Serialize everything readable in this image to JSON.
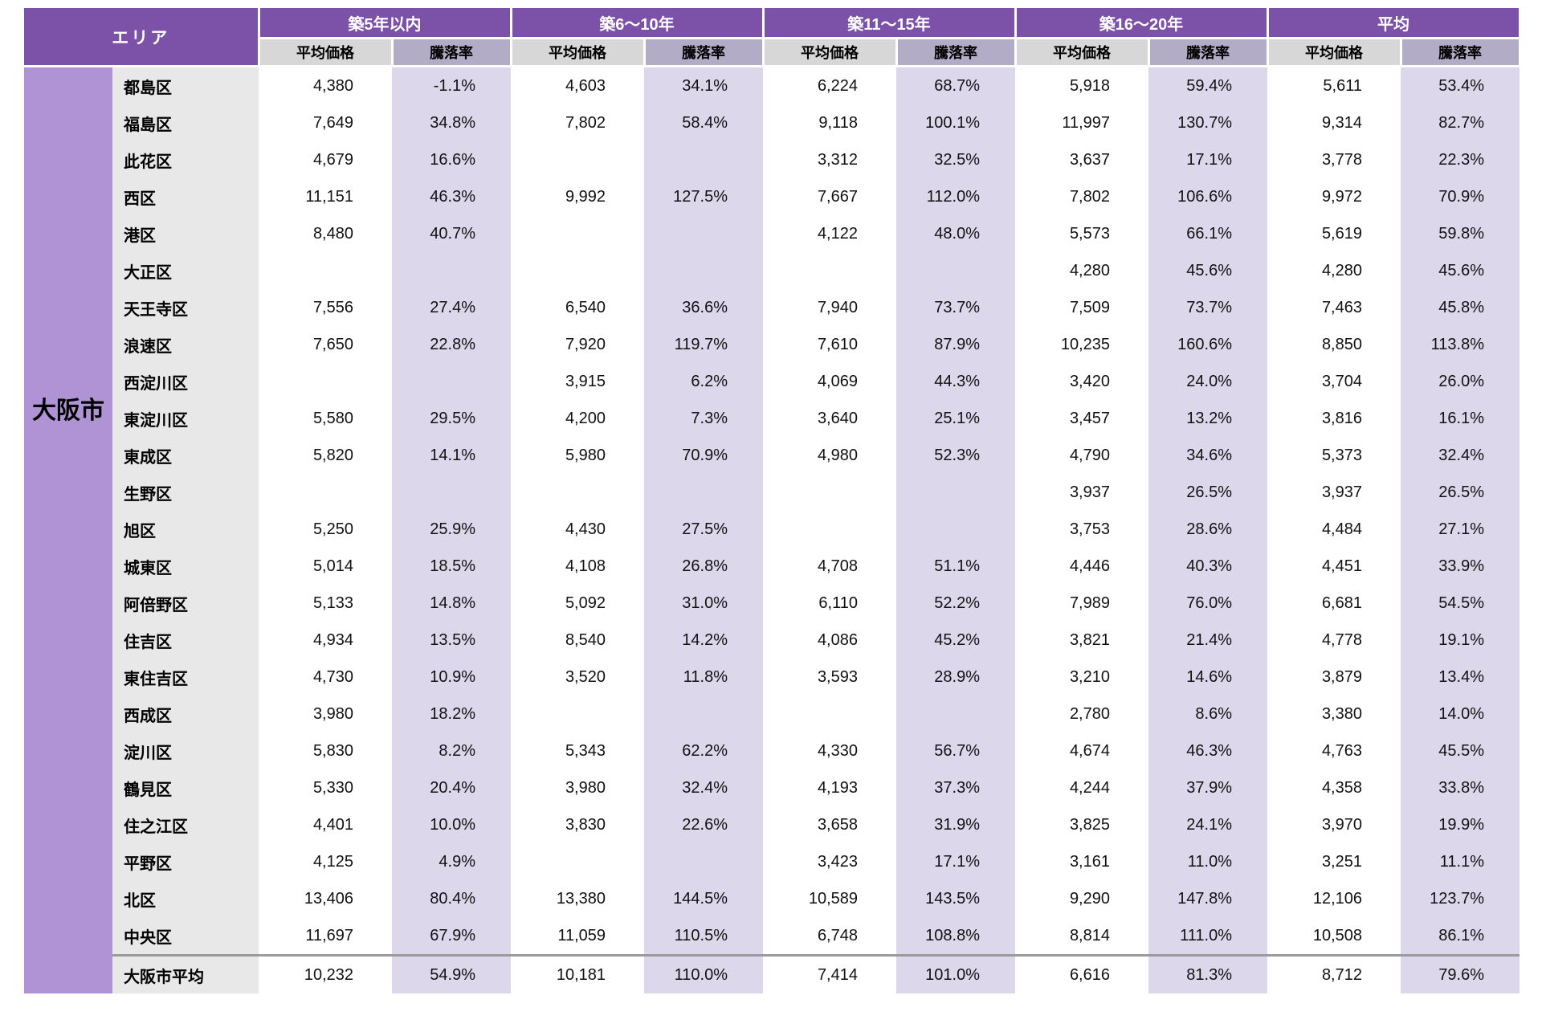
{
  "chart_data": {
    "type": "table",
    "area_header": "エリア",
    "city": "大阪市",
    "age_bands": [
      "築5年以内",
      "築6〜10年",
      "築11〜15年",
      "築16〜20年",
      "平均"
    ],
    "metrics": [
      "平均価格",
      "騰落率"
    ],
    "rows": [
      {
        "ward": "都島区",
        "values": [
          "4,380",
          "-1.1%",
          "4,603",
          "34.1%",
          "6,224",
          "68.7%",
          "5,918",
          "59.4%",
          "5,611",
          "53.4%"
        ]
      },
      {
        "ward": "福島区",
        "values": [
          "7,649",
          "34.8%",
          "7,802",
          "58.4%",
          "9,118",
          "100.1%",
          "11,997",
          "130.7%",
          "9,314",
          "82.7%"
        ]
      },
      {
        "ward": "此花区",
        "values": [
          "4,679",
          "16.6%",
          "",
          "",
          "3,312",
          "32.5%",
          "3,637",
          "17.1%",
          "3,778",
          "22.3%"
        ]
      },
      {
        "ward": "西区",
        "values": [
          "11,151",
          "46.3%",
          "9,992",
          "127.5%",
          "7,667",
          "112.0%",
          "7,802",
          "106.6%",
          "9,972",
          "70.9%"
        ]
      },
      {
        "ward": "港区",
        "values": [
          "8,480",
          "40.7%",
          "",
          "",
          "4,122",
          "48.0%",
          "5,573",
          "66.1%",
          "5,619",
          "59.8%"
        ]
      },
      {
        "ward": "大正区",
        "values": [
          "",
          "",
          "",
          "",
          "",
          "",
          "4,280",
          "45.6%",
          "4,280",
          "45.6%"
        ]
      },
      {
        "ward": "天王寺区",
        "values": [
          "7,556",
          "27.4%",
          "6,540",
          "36.6%",
          "7,940",
          "73.7%",
          "7,509",
          "73.7%",
          "7,463",
          "45.8%"
        ]
      },
      {
        "ward": "浪速区",
        "values": [
          "7,650",
          "22.8%",
          "7,920",
          "119.7%",
          "7,610",
          "87.9%",
          "10,235",
          "160.6%",
          "8,850",
          "113.8%"
        ]
      },
      {
        "ward": "西淀川区",
        "values": [
          "",
          "",
          "3,915",
          "6.2%",
          "4,069",
          "44.3%",
          "3,420",
          "24.0%",
          "3,704",
          "26.0%"
        ]
      },
      {
        "ward": "東淀川区",
        "values": [
          "5,580",
          "29.5%",
          "4,200",
          "7.3%",
          "3,640",
          "25.1%",
          "3,457",
          "13.2%",
          "3,816",
          "16.1%"
        ]
      },
      {
        "ward": "東成区",
        "values": [
          "5,820",
          "14.1%",
          "5,980",
          "70.9%",
          "4,980",
          "52.3%",
          "4,790",
          "34.6%",
          "5,373",
          "32.4%"
        ]
      },
      {
        "ward": "生野区",
        "values": [
          "",
          "",
          "",
          "",
          "",
          "",
          "3,937",
          "26.5%",
          "3,937",
          "26.5%"
        ]
      },
      {
        "ward": "旭区",
        "values": [
          "5,250",
          "25.9%",
          "4,430",
          "27.5%",
          "",
          "",
          "3,753",
          "28.6%",
          "4,484",
          "27.1%"
        ]
      },
      {
        "ward": "城東区",
        "values": [
          "5,014",
          "18.5%",
          "4,108",
          "26.8%",
          "4,708",
          "51.1%",
          "4,446",
          "40.3%",
          "4,451",
          "33.9%"
        ]
      },
      {
        "ward": "阿倍野区",
        "values": [
          "5,133",
          "14.8%",
          "5,092",
          "31.0%",
          "6,110",
          "52.2%",
          "7,989",
          "76.0%",
          "6,681",
          "54.5%"
        ]
      },
      {
        "ward": "住吉区",
        "values": [
          "4,934",
          "13.5%",
          "8,540",
          "14.2%",
          "4,086",
          "45.2%",
          "3,821",
          "21.4%",
          "4,778",
          "19.1%"
        ]
      },
      {
        "ward": "東住吉区",
        "values": [
          "4,730",
          "10.9%",
          "3,520",
          "11.8%",
          "3,593",
          "28.9%",
          "3,210",
          "14.6%",
          "3,879",
          "13.4%"
        ]
      },
      {
        "ward": "西成区",
        "values": [
          "3,980",
          "18.2%",
          "",
          "",
          "",
          "",
          "2,780",
          "8.6%",
          "3,380",
          "14.0%"
        ]
      },
      {
        "ward": "淀川区",
        "values": [
          "5,830",
          "8.2%",
          "5,343",
          "62.2%",
          "4,330",
          "56.7%",
          "4,674",
          "46.3%",
          "4,763",
          "45.5%"
        ]
      },
      {
        "ward": "鶴見区",
        "values": [
          "5,330",
          "20.4%",
          "3,980",
          "32.4%",
          "4,193",
          "37.3%",
          "4,244",
          "37.9%",
          "4,358",
          "33.8%"
        ]
      },
      {
        "ward": "住之江区",
        "values": [
          "4,401",
          "10.0%",
          "3,830",
          "22.6%",
          "3,658",
          "31.9%",
          "3,825",
          "24.1%",
          "3,970",
          "19.9%"
        ]
      },
      {
        "ward": "平野区",
        "values": [
          "4,125",
          "4.9%",
          "",
          "",
          "3,423",
          "17.1%",
          "3,161",
          "11.0%",
          "3,251",
          "11.1%"
        ]
      },
      {
        "ward": "北区",
        "values": [
          "13,406",
          "80.4%",
          "13,380",
          "144.5%",
          "10,589",
          "143.5%",
          "9,290",
          "147.8%",
          "12,106",
          "123.7%"
        ]
      },
      {
        "ward": "中央区",
        "values": [
          "11,697",
          "67.9%",
          "11,059",
          "110.5%",
          "6,748",
          "108.8%",
          "8,814",
          "111.0%",
          "10,508",
          "86.1%"
        ]
      }
    ],
    "summary_row": {
      "label": "大阪市平均",
      "values": [
        "10,232",
        "54.9%",
        "10,181",
        "110.0%",
        "7,414",
        "101.0%",
        "6,616",
        "81.3%",
        "8,712",
        "79.6%"
      ]
    }
  },
  "colors": {
    "header_purple": "#7C52A8",
    "city_column_purple": "#AF93D4",
    "subheader_price_gray": "#D7D7D7",
    "subheader_rate_gray_purple": "#B3ACC7",
    "ward_column_gray": "#E8E8E8",
    "rate_column_light_purple": "#DDD7EB",
    "summary_divider_gray": "#9B9B9B"
  }
}
